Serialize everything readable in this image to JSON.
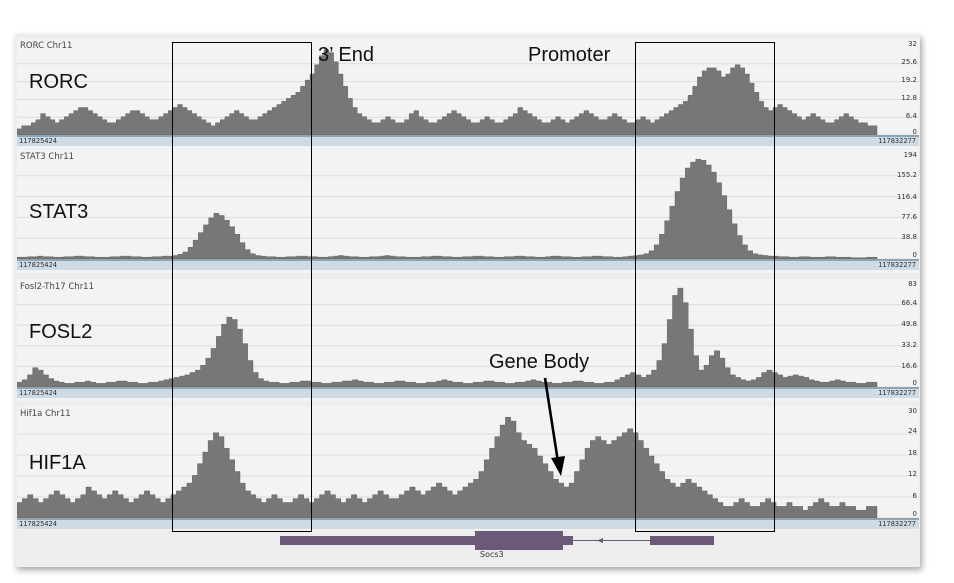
{
  "tracks": [
    {
      "id": "rorc",
      "title": "RORC Chr11",
      "label": "RORC",
      "scale": [
        "32",
        "25.6",
        "19.2",
        "12.8",
        "6.4",
        "0"
      ],
      "coord_left": "117825424",
      "coord_right": "117832277",
      "profile": [
        2,
        3,
        3,
        4,
        5,
        7,
        6,
        5,
        4,
        5,
        6,
        7,
        8,
        9,
        9,
        8,
        7,
        6,
        5,
        4,
        4,
        5,
        6,
        7,
        8,
        8,
        7,
        6,
        5,
        5,
        6,
        7,
        8,
        9,
        10,
        9,
        8,
        7,
        6,
        5,
        4,
        3,
        4,
        5,
        6,
        7,
        8,
        7,
        6,
        5,
        5,
        6,
        7,
        8,
        9,
        10,
        11,
        12,
        13,
        14,
        16,
        18,
        20,
        23,
        26,
        28,
        27,
        24,
        20,
        16,
        12,
        9,
        7,
        6,
        5,
        4,
        4,
        5,
        6,
        5,
        4,
        4,
        5,
        7,
        8,
        6,
        5,
        4,
        4,
        5,
        6,
        7,
        8,
        7,
        6,
        5,
        4,
        4,
        5,
        6,
        5,
        4,
        4,
        5,
        6,
        7,
        9,
        8,
        7,
        6,
        5,
        4,
        4,
        5,
        6,
        5,
        4,
        5,
        6,
        7,
        8,
        7,
        6,
        5,
        5,
        6,
        7,
        6,
        5,
        4,
        4,
        5,
        6,
        5,
        4,
        5,
        6,
        7,
        8,
        9,
        10,
        11,
        13,
        16,
        19,
        21,
        22,
        22,
        21,
        19,
        20,
        22,
        23,
        22,
        20,
        17,
        14,
        11,
        9,
        8,
        9,
        10,
        9,
        8,
        7,
        6,
        5,
        6,
        7,
        6,
        5,
        4,
        4,
        5,
        6,
        7,
        6,
        5,
        4,
        4,
        3,
        3
      ]
    },
    {
      "id": "stat3",
      "title": "STAT3 Chr11",
      "label": "STAT3",
      "scale": [
        "194",
        "155.2",
        "116.4",
        "77.6",
        "38.8",
        "0"
      ],
      "coord_left": "117825424",
      "coord_right": "117832277",
      "profile": [
        3,
        3,
        4,
        4,
        5,
        4,
        4,
        3,
        3,
        4,
        4,
        5,
        5,
        4,
        4,
        3,
        3,
        3,
        4,
        4,
        5,
        5,
        4,
        4,
        3,
        3,
        4,
        4,
        5,
        5,
        6,
        8,
        12,
        20,
        32,
        45,
        58,
        70,
        78,
        74,
        66,
        55,
        42,
        28,
        16,
        9,
        6,
        5,
        4,
        4,
        3,
        3,
        4,
        4,
        5,
        5,
        4,
        4,
        3,
        3,
        4,
        5,
        6,
        5,
        4,
        4,
        3,
        3,
        4,
        4,
        5,
        6,
        5,
        4,
        4,
        3,
        3,
        3,
        4,
        4,
        5,
        5,
        4,
        4,
        3,
        3,
        4,
        4,
        5,
        5,
        4,
        4,
        3,
        3,
        4,
        4,
        5,
        5,
        4,
        4,
        3,
        3,
        4,
        5,
        5,
        4,
        4,
        3,
        3,
        4,
        4,
        5,
        5,
        4,
        4,
        3,
        3,
        4,
        5,
        6,
        7,
        9,
        14,
        24,
        42,
        65,
        90,
        115,
        138,
        155,
        165,
        170,
        168,
        160,
        148,
        130,
        108,
        84,
        60,
        40,
        24,
        14,
        9,
        7,
        6,
        5,
        5,
        4,
        4,
        3,
        3,
        4,
        4,
        3,
        3,
        3,
        4,
        4,
        3,
        3,
        3,
        2,
        2,
        2,
        3,
        3
      ]
    },
    {
      "id": "fosl2",
      "title": "Fosl2-Th17 Chr11",
      "label": "FOSL2",
      "scale": [
        "83",
        "66.4",
        "49.8",
        "33.2",
        "16.6",
        "0"
      ],
      "coord_left": "117825424",
      "coord_right": "117832277",
      "profile": [
        4,
        6,
        10,
        16,
        14,
        10,
        7,
        5,
        4,
        3,
        3,
        4,
        4,
        5,
        4,
        3,
        3,
        4,
        4,
        5,
        5,
        4,
        4,
        3,
        3,
        4,
        4,
        5,
        6,
        7,
        8,
        9,
        10,
        12,
        14,
        18,
        24,
        32,
        42,
        52,
        58,
        56,
        48,
        36,
        22,
        12,
        7,
        5,
        4,
        4,
        3,
        3,
        4,
        4,
        5,
        5,
        4,
        4,
        3,
        3,
        4,
        4,
        5,
        5,
        6,
        5,
        4,
        4,
        3,
        3,
        4,
        4,
        5,
        5,
        4,
        4,
        3,
        3,
        4,
        4,
        5,
        6,
        5,
        4,
        4,
        3,
        3,
        4,
        4,
        5,
        5,
        4,
        4,
        3,
        3,
        4,
        4,
        5,
        6,
        5,
        4,
        4,
        3,
        3,
        4,
        4,
        5,
        5,
        4,
        4,
        3,
        3,
        4,
        4,
        6,
        8,
        10,
        12,
        10,
        8,
        10,
        14,
        22,
        36,
        56,
        76,
        82,
        70,
        48,
        26,
        14,
        18,
        26,
        30,
        24,
        16,
        10,
        8,
        6,
        5,
        6,
        8,
        12,
        14,
        12,
        10,
        8,
        9,
        10,
        9,
        8,
        6,
        5,
        4,
        4,
        5,
        6,
        5,
        4,
        4,
        3,
        3,
        4,
        4
      ]
    },
    {
      "id": "hif1a",
      "title": "Hif1a Chr11",
      "label": "HIF1A",
      "scale": [
        "30",
        "24",
        "18",
        "12",
        "6",
        "0"
      ],
      "coord_left": "117825424",
      "coord_right": "117832277",
      "profile": [
        4,
        5,
        6,
        5,
        4,
        5,
        6,
        7,
        6,
        5,
        4,
        5,
        6,
        8,
        7,
        6,
        5,
        6,
        7,
        6,
        5,
        4,
        5,
        6,
        7,
        6,
        5,
        4,
        5,
        6,
        7,
        8,
        9,
        11,
        14,
        17,
        20,
        22,
        21,
        18,
        15,
        12,
        9,
        7,
        6,
        5,
        4,
        5,
        6,
        5,
        4,
        4,
        5,
        6,
        5,
        4,
        5,
        6,
        7,
        6,
        5,
        4,
        5,
        6,
        5,
        4,
        5,
        6,
        7,
        6,
        5,
        5,
        6,
        7,
        8,
        7,
        6,
        7,
        8,
        9,
        8,
        7,
        6,
        7,
        8,
        9,
        10,
        12,
        15,
        18,
        21,
        24,
        26,
        25,
        22,
        20,
        19,
        18,
        16,
        14,
        12,
        10,
        9,
        8,
        9,
        12,
        15,
        18,
        20,
        21,
        20,
        19,
        20,
        21,
        22,
        23,
        22,
        20,
        18,
        16,
        14,
        12,
        10,
        9,
        8,
        9,
        10,
        9,
        8,
        7,
        6,
        5,
        4,
        3,
        3,
        4,
        5,
        4,
        3,
        3,
        4,
        5,
        4,
        3,
        3,
        4,
        3,
        3,
        2,
        3,
        4,
        5,
        4,
        3,
        3,
        4,
        3,
        3,
        2,
        2,
        3,
        3
      ]
    }
  ],
  "annotations": {
    "end_label": "3’ End",
    "promoter_label": "Promoter",
    "gene_body_label": "Gene Body"
  },
  "gene": {
    "name": "Socs3"
  },
  "colors": {
    "signal": "#777777",
    "signal_edge": "#555555",
    "gene": "#6a5a78",
    "frame_bg": "#ededed"
  }
}
